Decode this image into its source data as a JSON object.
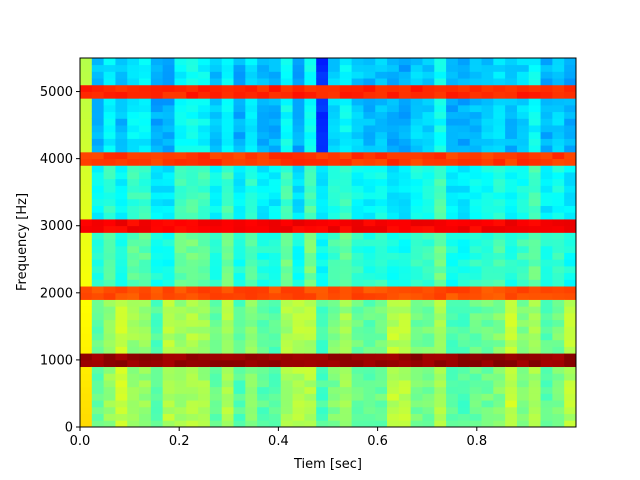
{
  "chart_data": {
    "type": "heatmap",
    "title": "",
    "xlabel": "Tiem [sec]",
    "ylabel": "Frequency [Hz]",
    "xlim": [
      0.0,
      1.0
    ],
    "ylim": [
      0,
      5500
    ],
    "x_ticks": [
      0.0,
      0.2,
      0.4,
      0.6,
      0.8
    ],
    "x_tick_labels": [
      "0.0",
      "0.2",
      "0.4",
      "0.6",
      "0.8"
    ],
    "y_ticks": [
      0,
      1000,
      2000,
      3000,
      4000,
      5000
    ],
    "y_tick_labels": [
      "0",
      "1000",
      "2000",
      "3000",
      "4000",
      "5000"
    ],
    "colormap": "jet",
    "grid": false,
    "harmonic_bands_hz": [
      1000,
      2000,
      3000,
      4000,
      5000
    ],
    "band_intensity": [
      1.0,
      0.82,
      0.9,
      0.84,
      0.86
    ],
    "time_bins": 42,
    "freq_bins": 55
  }
}
